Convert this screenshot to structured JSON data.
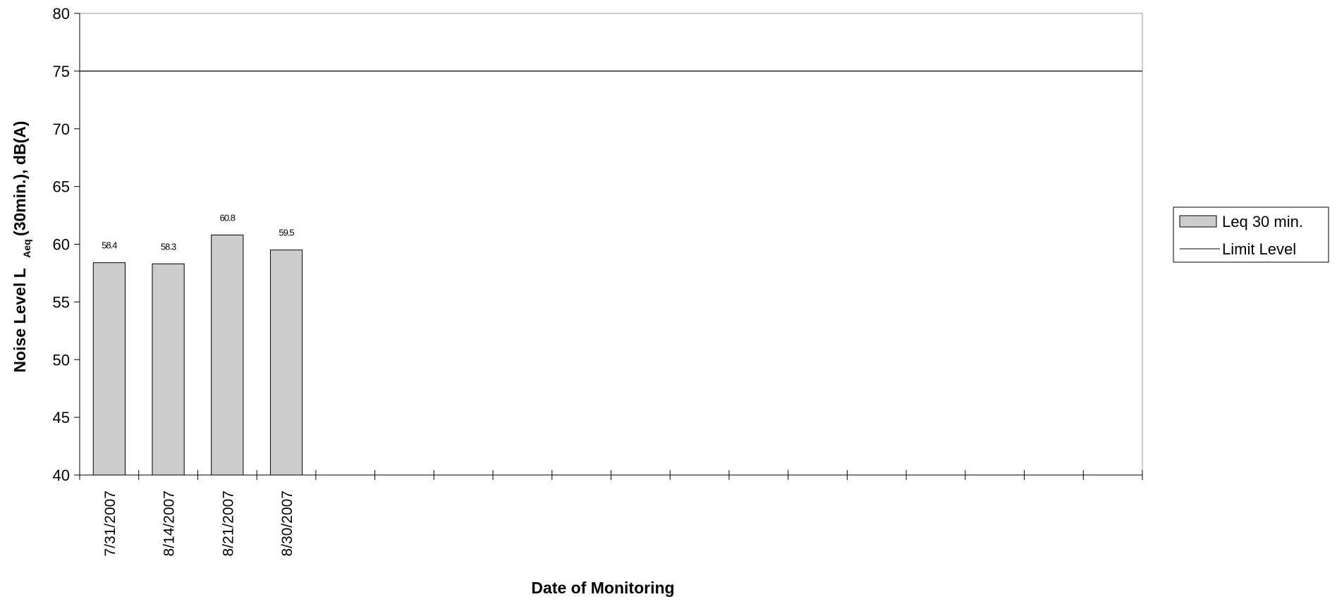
{
  "chart_data": {
    "type": "bar",
    "categories": [
      "7/31/2007",
      "8/14/2007",
      "8/21/2007",
      "8/30/2007",
      "",
      "",
      "",
      "",
      "",
      "",
      "",
      "",
      "",
      "",
      "",
      "",
      "",
      ""
    ],
    "series": [
      {
        "name": "Leq 30 min.",
        "type": "bar",
        "values": [
          58.4,
          58.3,
          60.8,
          59.5,
          null,
          null,
          null,
          null,
          null,
          null,
          null,
          null,
          null,
          null,
          null,
          null,
          null,
          null
        ],
        "data_labels": [
          "58.4",
          "58.3",
          "60.8",
          "59.5"
        ],
        "color": "#cccccc"
      },
      {
        "name": "Limit Level",
        "type": "line",
        "value": 75,
        "color": "#000000"
      }
    ],
    "title": "",
    "xlabel": "Date of Monitoring",
    "ylabel": {
      "main": "Noise Level L",
      "subscript": "Aeq",
      "rest": "(30min.), dB(A)"
    },
    "ylim": [
      40,
      80
    ],
    "yticks": [
      "40",
      "45",
      "50",
      "55",
      "60",
      "65",
      "70",
      "75",
      "80"
    ],
    "grid": false,
    "legend_position": "right"
  }
}
